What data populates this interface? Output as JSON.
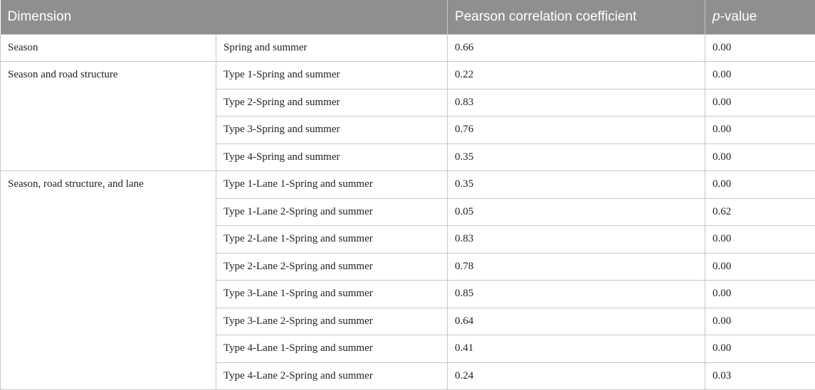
{
  "table": {
    "headers": {
      "dimension": "Dimension",
      "pearson": "Pearson correlation coefficient",
      "p_italic": "p",
      "p_rest": "-value"
    },
    "groups": [
      {
        "dimension": "Season",
        "rows": [
          {
            "condition": "Spring and summer",
            "pearson": "0.66",
            "p": "0.00"
          }
        ]
      },
      {
        "dimension": "Season and road structure",
        "rows": [
          {
            "condition": "Type 1-Spring and summer",
            "pearson": "0.22",
            "p": "0.00"
          },
          {
            "condition": "Type 2-Spring and summer",
            "pearson": "0.83",
            "p": "0.00"
          },
          {
            "condition": "Type 3-Spring and summer",
            "pearson": "0.76",
            "p": "0.00"
          },
          {
            "condition": "Type 4-Spring and summer",
            "pearson": "0.35",
            "p": "0.00"
          }
        ]
      },
      {
        "dimension": "Season, road structure, and lane",
        "rows": [
          {
            "condition": "Type 1-Lane 1-Spring and summer",
            "pearson": "0.35",
            "p": "0.00"
          },
          {
            "condition": "Type 1-Lane 2-Spring and summer",
            "pearson": "0.05",
            "p": "0.62"
          },
          {
            "condition": "Type 2-Lane 1-Spring and summer",
            "pearson": "0.83",
            "p": "0.00"
          },
          {
            "condition": "Type 2-Lane 2-Spring and summer",
            "pearson": "0.78",
            "p": "0.00"
          },
          {
            "condition": "Type 3-Lane 1-Spring and summer",
            "pearson": "0.85",
            "p": "0.00"
          },
          {
            "condition": "Type 3-Lane 2-Spring and summer",
            "pearson": "0.64",
            "p": "0.00"
          },
          {
            "condition": "Type 4-Lane 1-Spring and summer",
            "pearson": "0.41",
            "p": "0.00"
          },
          {
            "condition": "Type 4-Lane 2-Spring and summer",
            "pearson": "0.24",
            "p": "0.03"
          }
        ]
      }
    ]
  }
}
